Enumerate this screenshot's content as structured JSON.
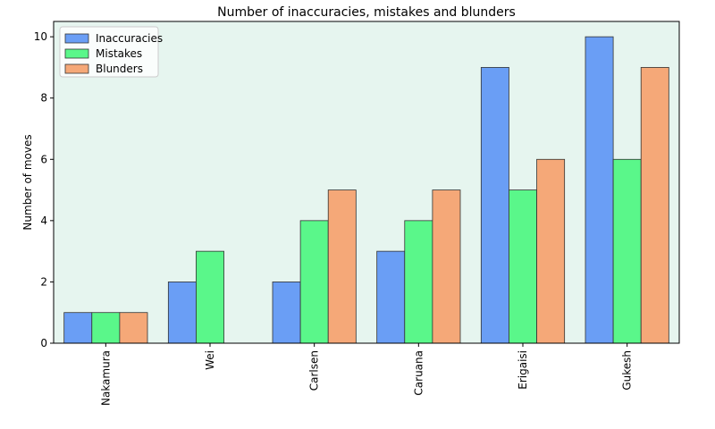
{
  "chart_data": {
    "type": "bar",
    "title": "Number of inaccuracies, mistakes and blunders",
    "y_label": "Number of moves",
    "categories": [
      "Nakamura",
      "Wei",
      "Carlsen",
      "Caruana",
      "Erigaisi",
      "Gukesh"
    ],
    "series": [
      {
        "name": "Inaccuracies",
        "color": "#6a9ef5",
        "values": [
          1,
          2,
          2,
          3,
          9,
          10
        ]
      },
      {
        "name": "Mistakes",
        "color": "#5af78a",
        "values": [
          1,
          3,
          4,
          4,
          5,
          6
        ]
      },
      {
        "name": "Blunders",
        "color": "#f5a878",
        "values": [
          1,
          0,
          5,
          5,
          6,
          9
        ]
      }
    ],
    "ylim": [
      0,
      10.5
    ],
    "yticks": [
      0,
      2,
      4,
      6,
      8,
      10
    ],
    "background": "#e6f5ef",
    "legend": "upper-left"
  }
}
